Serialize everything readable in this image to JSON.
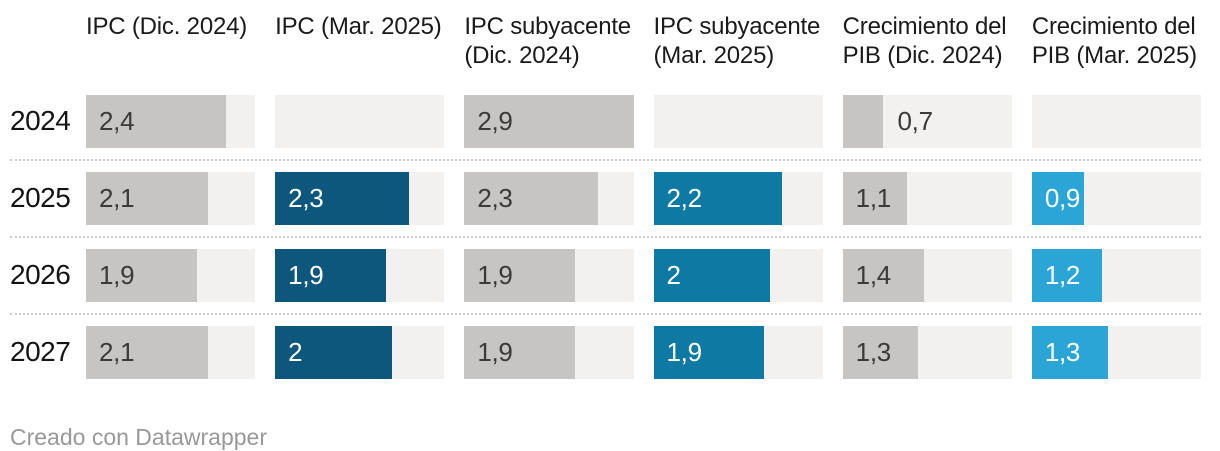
{
  "chart_data": {
    "type": "bar",
    "variant": "bar-table",
    "title": "",
    "scale_max": 2.9,
    "grid": "dotted-row-separators",
    "legend_position": "none",
    "columns": [
      {
        "id": "ipc-dic-2024",
        "label": "IPC (Dic. 2024)",
        "label_lines": [
          "IPC (Dic. 2024)"
        ],
        "bar_color": "#c6c5c3",
        "value_color": "#3b3a38"
      },
      {
        "id": "ipc-mar-2025",
        "label": "IPC (Mar. 2025)",
        "label_lines": [
          "IPC (Mar. 2025)"
        ],
        "bar_color": "#0d567c",
        "value_color": "#ffffff"
      },
      {
        "id": "ipc-subyacente-dic-2024",
        "label": "IPC subyacente (Dic. 2024)",
        "label_lines": [
          "IPC subyacente",
          "(Dic. 2024)"
        ],
        "bar_color": "#c6c5c3",
        "value_color": "#3b3a38"
      },
      {
        "id": "ipc-subyacente-mar-2025",
        "label": "IPC subyacente (Mar. 2025)",
        "label_lines": [
          "IPC subyacente",
          "(Mar. 2025)"
        ],
        "bar_color": "#0e7aa4",
        "value_color": "#ffffff"
      },
      {
        "id": "crecimiento-pib-dic-2024",
        "label": "Crecimiento del PIB (Dic. 2024)",
        "label_lines": [
          "Crecimiento del",
          "PIB (Dic. 2024)"
        ],
        "bar_color": "#c6c5c3",
        "value_color": "#3b3a38"
      },
      {
        "id": "crecimiento-pib-mar-2025",
        "label": "Crecimiento del PIB (Mar. 2025)",
        "label_lines": [
          "Crecimiento del",
          "PIB (Mar. 2025)"
        ],
        "bar_color": "#2aa5d6",
        "value_color": "#ffffff"
      }
    ],
    "rows": [
      {
        "label": "2024",
        "values": [
          2.4,
          null,
          2.9,
          null,
          0.7,
          null
        ],
        "displays": [
          "2,4",
          null,
          "2,9",
          null,
          "0,7",
          null
        ]
      },
      {
        "label": "2025",
        "values": [
          2.1,
          2.3,
          2.3,
          2.2,
          1.1,
          0.9
        ],
        "displays": [
          "2,1",
          "2,3",
          "2,3",
          "2,2",
          "1,1",
          "0,9"
        ]
      },
      {
        "label": "2026",
        "values": [
          1.9,
          1.9,
          1.9,
          2.0,
          1.4,
          1.2
        ],
        "displays": [
          "1,9",
          "1,9",
          "1,9",
          "2",
          "1,4",
          "1,2"
        ]
      },
      {
        "label": "2027",
        "values": [
          2.1,
          2.0,
          1.9,
          1.9,
          1.3,
          1.3
        ],
        "displays": [
          "2,1",
          "2",
          "1,9",
          "1,9",
          "1,3",
          "1,3"
        ]
      }
    ],
    "colors": {
      "track": "#f2f1ef",
      "gray_bar": "#c6c5c3",
      "dark_blue_bar": "#0d567c",
      "medium_blue_bar": "#0e7aa4",
      "light_blue_bar": "#2aa5d6",
      "outside_value_text": "#3b3a38",
      "separator": "#cccccc",
      "header_text": "#1a1a1a",
      "row_label_text": "#141414"
    }
  },
  "footer": {
    "attribution": "Creado con Datawrapper"
  }
}
